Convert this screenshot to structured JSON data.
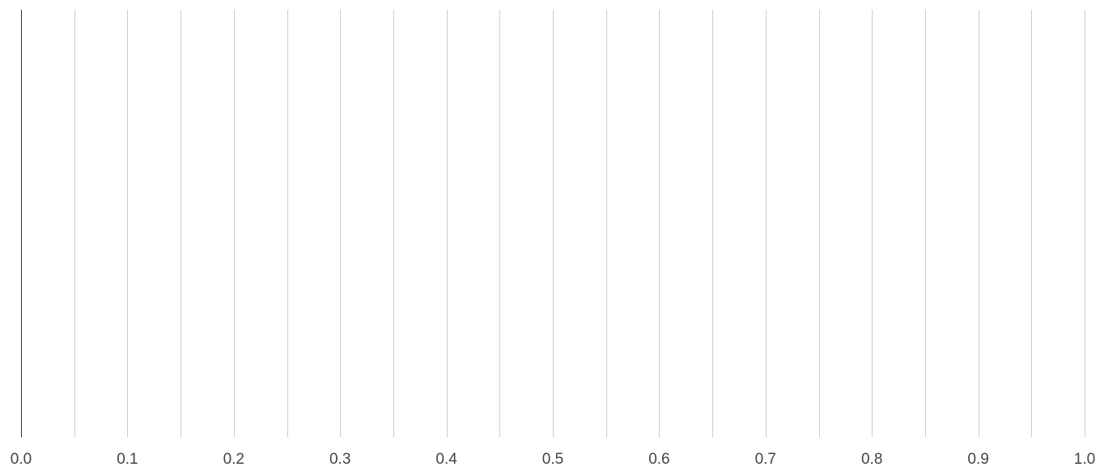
{
  "chart_data": {
    "type": "bar",
    "title": "",
    "xlabel": "",
    "ylabel": "",
    "orientation": "horizontal",
    "xlim": [
      0.0,
      1.0
    ],
    "x_major_ticks": [
      0.0,
      0.1,
      0.2,
      0.3,
      0.4,
      0.5,
      0.6,
      0.7,
      0.8,
      0.9,
      1.0
    ],
    "x_tick_labels": [
      "0.0",
      "0.1",
      "0.2",
      "0.3",
      "0.4",
      "0.5",
      "0.6",
      "0.7",
      "0.8",
      "0.9",
      "1.0"
    ],
    "x_minor_ticks": [
      0.05,
      0.15,
      0.25,
      0.35,
      0.45,
      0.55,
      0.65,
      0.75,
      0.85,
      0.95
    ],
    "categories": [],
    "series": [],
    "grid": true,
    "legend": "none"
  },
  "colors": {
    "background": "#ffffff",
    "baseline": "#333333",
    "gridline": "#cccccc",
    "tick_label": "#444444"
  }
}
